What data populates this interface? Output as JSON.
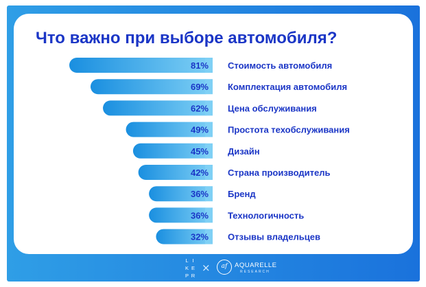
{
  "colors": {
    "frame": "#2a8fe4",
    "card": "#ffffff",
    "title": "#1b36c6",
    "bar_start": "#1a8fe0",
    "bar_end": "#7fd0f5",
    "value_text": "#1b36c6",
    "label_text": "#1b36c6"
  },
  "chart_data": {
    "type": "bar",
    "orientation": "horizontal",
    "title": "Что важно при выборе автомобиля?",
    "categories": [
      "Стоимость автомобиля",
      "Комплектация автомобиля",
      "Цена обслуживания",
      "Простота техобслуживания",
      "Дизайн",
      "Страна производитель",
      "Бренд",
      "Технологичность",
      "Отзывы владельцев"
    ],
    "values": [
      81,
      69,
      62,
      49,
      45,
      42,
      36,
      36,
      32
    ],
    "value_labels": [
      "81%",
      "69%",
      "62%",
      "49%",
      "45%",
      "42%",
      "36%",
      "36%",
      "32%"
    ],
    "unit": "%",
    "bar_alignment": "right",
    "grid": false,
    "legend": "none"
  },
  "footer": {
    "likepr_letters": [
      "L",
      "I",
      "K",
      "E",
      "P",
      "R"
    ],
    "separator": "×",
    "partner_logo_text": "af",
    "partner_name": "AQUARELLE",
    "partner_sub": "RESEARCH"
  }
}
